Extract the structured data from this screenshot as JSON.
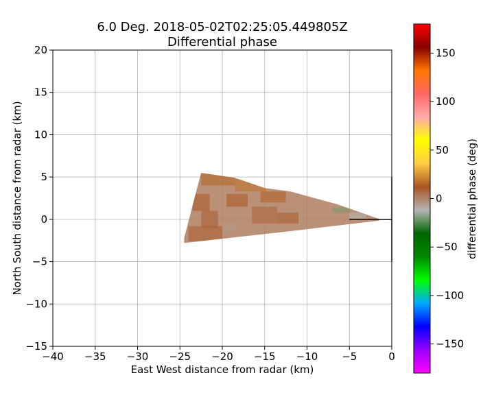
{
  "chart_data": {
    "type": "heatmap",
    "title_line1": "6.0 Deg. 2018-05-02T02:25:05.449805Z",
    "title_line2": "Differential phase",
    "xlabel": "East West distance from radar (km)",
    "ylabel": "North South distance from radar (km)",
    "xlim": [
      -40,
      0
    ],
    "ylim": [
      -15,
      20
    ],
    "xticks": [
      -40,
      -35,
      -30,
      -25,
      -20,
      -15,
      -10,
      -5,
      0
    ],
    "yticks": [
      -15,
      -10,
      -5,
      0,
      5,
      10,
      15,
      20
    ],
    "grid": true,
    "colorbar": {
      "label": "differential phase (deg)",
      "range": [
        -180,
        180
      ],
      "ticks": [
        150,
        100,
        50,
        0,
        -50,
        -100,
        -150
      ],
      "colors": [
        "#ff00ff",
        "#9900ff",
        "#0000ff",
        "#00aaff",
        "#00ff00",
        "#008800",
        "#006600",
        "#b4b4b4",
        "#aa5522",
        "#ffcc44",
        "#ffff00",
        "#ffaaaa",
        "#ff6666",
        "#ff7700",
        "#880000",
        "#ff0000"
      ]
    },
    "sector": {
      "polygon": [
        [
          -1.5,
          0.05
        ],
        [
          -1.5,
          -0.15
        ],
        [
          -12,
          -1.4
        ],
        [
          -24.5,
          -2.8
        ],
        [
          -24.5,
          -2.2
        ],
        [
          -22.5,
          5.5
        ],
        [
          -18.5,
          4.9
        ],
        [
          -15,
          3.7
        ],
        [
          -12,
          3.3
        ],
        [
          -6.5,
          1.8
        ]
      ],
      "base_value": 2,
      "patches": [
        {
          "x": [
            -22.5,
            -18.5
          ],
          "y": [
            4.0,
            5.4
          ],
          "value": 15
        },
        {
          "x": [
            -18.5,
            -14.8
          ],
          "y": [
            3.3,
            4.8
          ],
          "value": 18
        },
        {
          "x": [
            -23.5,
            -21.5
          ],
          "y": [
            1.0,
            3.0
          ],
          "value": 12
        },
        {
          "x": [
            -22.5,
            -20.5
          ],
          "y": [
            -1.0,
            1.0
          ],
          "value": 10
        },
        {
          "x": [
            -19.5,
            -17.0
          ],
          "y": [
            1.5,
            3.0
          ],
          "value": 12
        },
        {
          "x": [
            -16.5,
            -13.5
          ],
          "y": [
            -0.5,
            1.5
          ],
          "value": 8
        },
        {
          "x": [
            -15.5,
            -12.5
          ],
          "y": [
            2.0,
            3.3
          ],
          "value": 14
        },
        {
          "x": [
            -24.0,
            -20.0
          ],
          "y": [
            -2.6,
            -0.8
          ],
          "value": 10
        },
        {
          "x": [
            -13.5,
            -11.0
          ],
          "y": [
            -0.5,
            0.8
          ],
          "value": 10
        },
        {
          "x": [
            -7.0,
            -5.0
          ],
          "y": [
            0.8,
            1.4
          ],
          "value": -20
        },
        {
          "x": [
            -5.0,
            -3.0
          ],
          "y": [
            0.1,
            0.8
          ],
          "value": -12
        },
        {
          "x": [
            -20.0,
            -18.5
          ],
          "y": [
            -1.5,
            -0.5
          ],
          "value": -5
        }
      ]
    },
    "radar_marks": [
      {
        "x": [
          -5,
          0
        ],
        "y": [
          0,
          0
        ]
      },
      {
        "x": [
          0,
          0
        ],
        "y": [
          -5,
          5
        ]
      }
    ]
  }
}
